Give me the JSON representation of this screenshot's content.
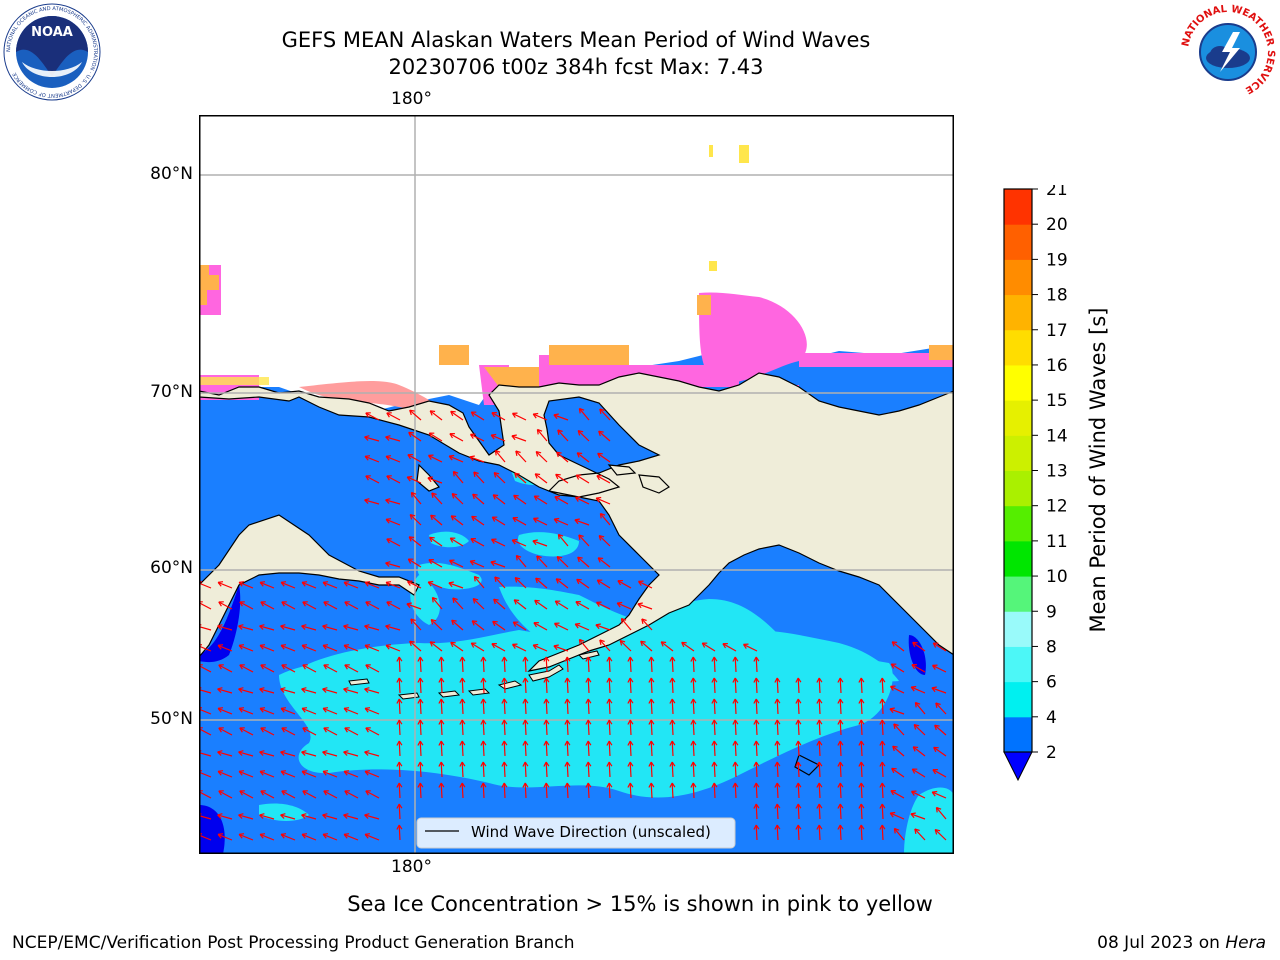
{
  "title": {
    "line1": "GEFS MEAN Alaskan Waters Mean Period of Wind Waves",
    "line2": "20230706 t00z 384h fcst   Max: 7.43"
  },
  "logos": {
    "noaa_text": "NOAA",
    "noaa_ring": "NATIONAL OCEANIC AND ATMOSPHERIC ADMINISTRATION · U.S. DEPARTMENT OF COMMERCE",
    "nws_ring": "NATIONAL WEATHER SERVICE"
  },
  "map": {
    "lon_label_top": "180°",
    "lon_label_bottom": "180°",
    "lat_labels": [
      "80°N",
      "70°N",
      "60°N",
      "50°N"
    ],
    "legend": "Wind Wave Direction (unscaled)",
    "colors": {
      "land": "#efedd9",
      "ocean_low": "#1a7fff",
      "ocean_mid": "#22e6f5",
      "deep": "#0000ee",
      "ice_pink": "#ff66e0",
      "ice_orange": "#ffb24c",
      "ice_yellow": "#ffe64c",
      "arrow": "#ff0000",
      "grid": "#b0b0b0"
    }
  },
  "colorbar": {
    "label": "Mean Period of Wind Waves [s]",
    "ticks": [
      "2",
      "4",
      "6",
      "8",
      "9",
      "10",
      "11",
      "12",
      "13",
      "14",
      "15",
      "16",
      "17",
      "18",
      "19",
      "20",
      "21"
    ],
    "colors": [
      "#0073ff",
      "#00f0f0",
      "#4cf7f7",
      "#99fafa",
      "#55f57a",
      "#00e600",
      "#55ee00",
      "#aaf000",
      "#ccf000",
      "#e6f000",
      "#ffff00",
      "#ffdd00",
      "#ffb300",
      "#ff8c00",
      "#ff6000",
      "#ff3300",
      "#ff0000"
    ],
    "under_color": "#0000ff"
  },
  "caption": "Sea Ice Concentration > 15% is shown in pink to yellow",
  "footer": {
    "left": "NCEP/EMC/Verification Post Processing Product Generation Branch",
    "right_date": "08 Jul 2023 on ",
    "right_host": "Hera"
  }
}
